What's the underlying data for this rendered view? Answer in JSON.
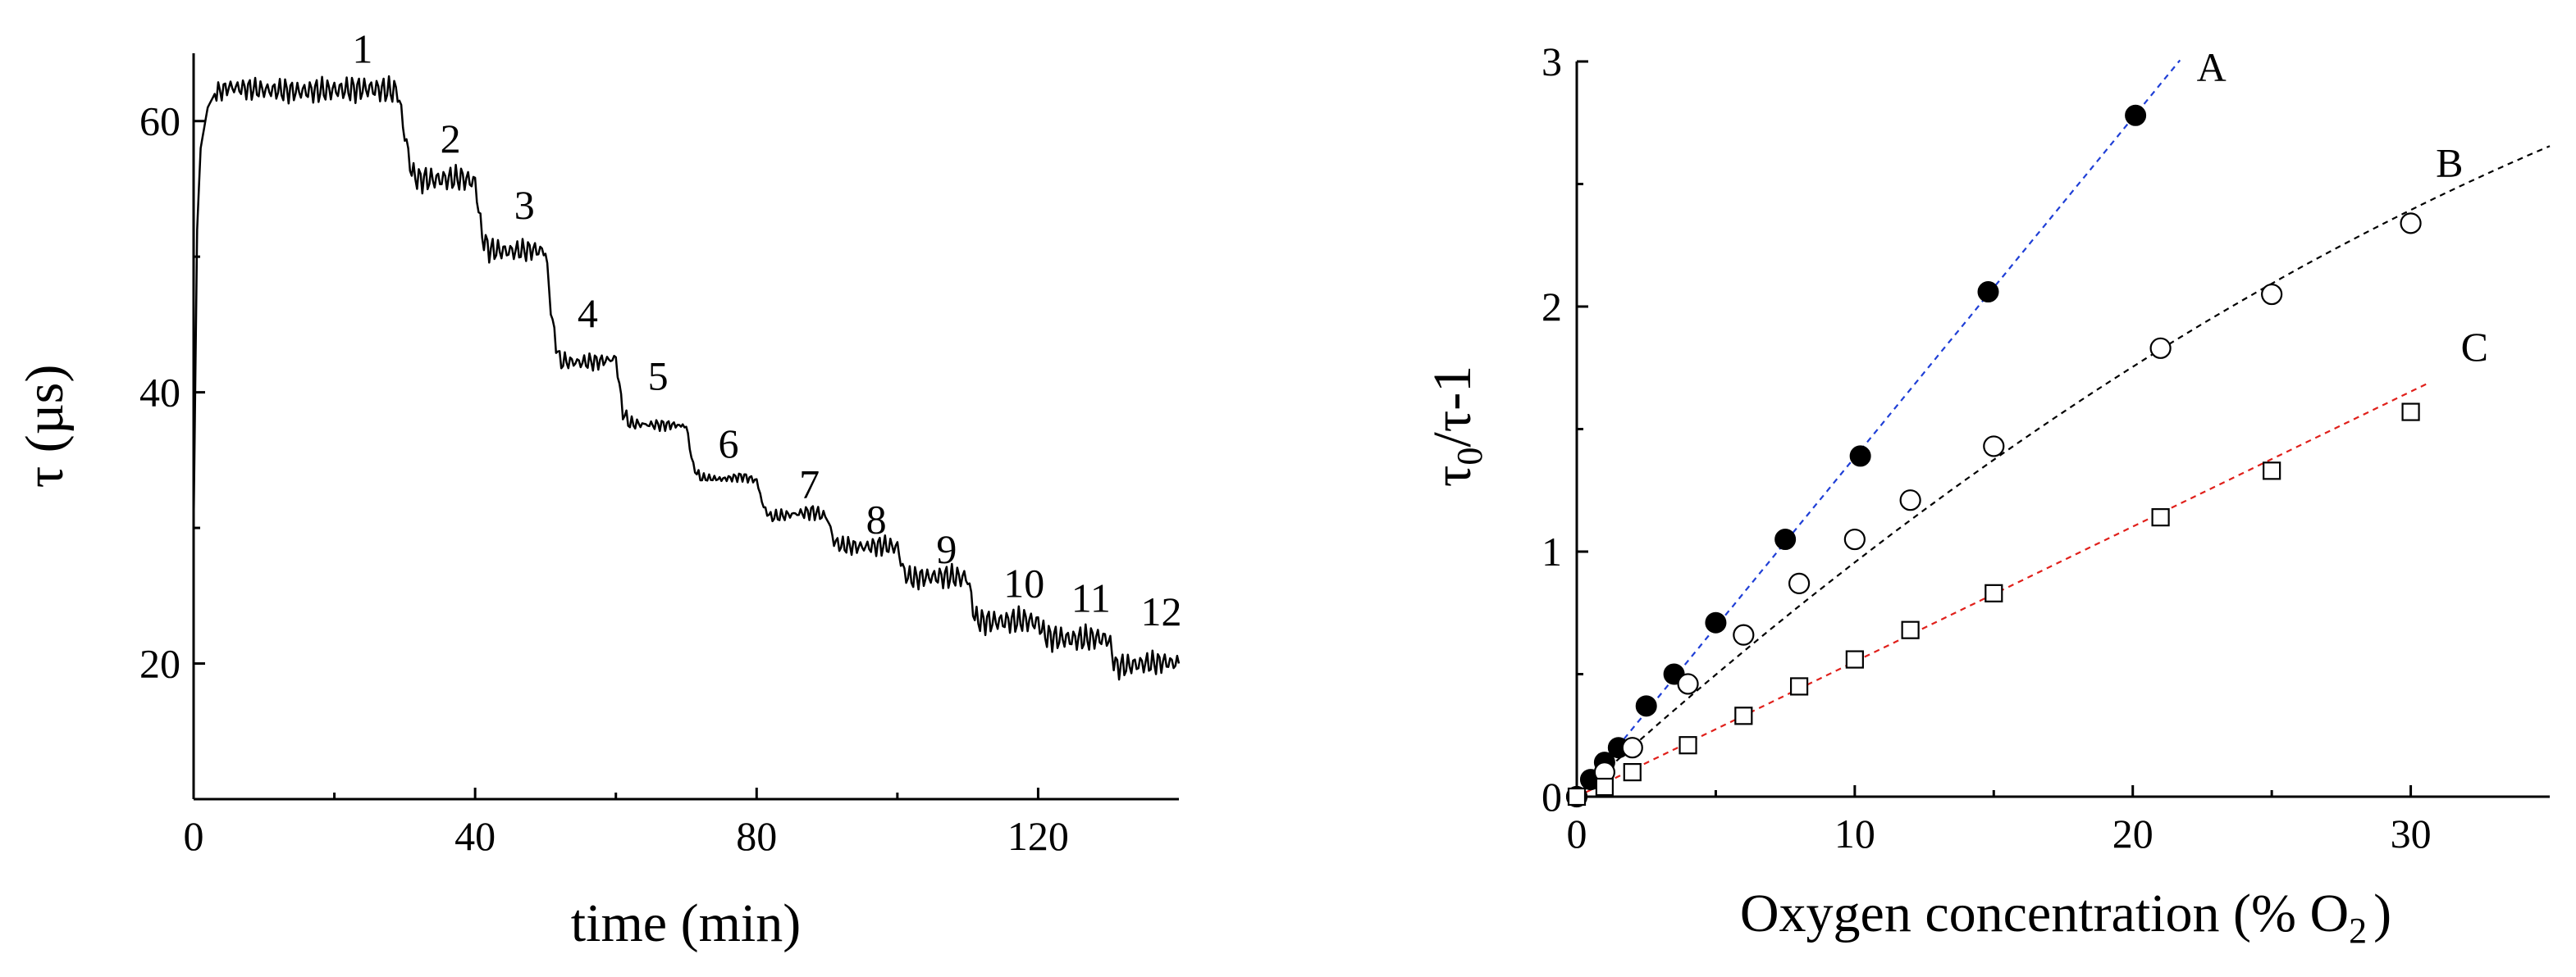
{
  "chart_data": [
    {
      "type": "line",
      "xlabel": "time (min)",
      "ylabel": "τ (µs)",
      "xlim": [
        0,
        140
      ],
      "ylim": [
        10,
        65
      ],
      "x_ticks": [
        0,
        40,
        80,
        120
      ],
      "y_ticks": [
        20,
        40,
        60
      ],
      "grid": false,
      "legend": "none",
      "color": "#000000",
      "step_annotations": [
        {
          "text": "1",
          "x": 24,
          "y": 64.3
        },
        {
          "text": "2",
          "x": 36.5,
          "y": 57.7
        },
        {
          "text": "3",
          "x": 47,
          "y": 52.8
        },
        {
          "text": "4",
          "x": 56,
          "y": 44.8
        },
        {
          "text": "5",
          "x": 66,
          "y": 40.2
        },
        {
          "text": "6",
          "x": 76,
          "y": 35.2
        },
        {
          "text": "7",
          "x": 87.5,
          "y": 32.2
        },
        {
          "text": "8",
          "x": 97,
          "y": 29.6
        },
        {
          "text": "9",
          "x": 107,
          "y": 27.4
        },
        {
          "text": "10",
          "x": 118,
          "y": 24.9
        },
        {
          "text": "11",
          "x": 127.5,
          "y": 23.8
        },
        {
          "text": "12",
          "x": 137.5,
          "y": 22.8
        }
      ],
      "series": [
        {
          "x": [
            0,
            0.5,
            1,
            2,
            3,
            5,
            10,
            15,
            20,
            25,
            29,
            30,
            31,
            32,
            35,
            38,
            40,
            41,
            42,
            45,
            48,
            50,
            51,
            52,
            55,
            58,
            60,
            61,
            62,
            65,
            68,
            70,
            71,
            72,
            75,
            78,
            80,
            81,
            82,
            85,
            88,
            90,
            91,
            92,
            95,
            98,
            100,
            101,
            102,
            105,
            108,
            110,
            111,
            112,
            115,
            118,
            120,
            121,
            122,
            125,
            128,
            130,
            131,
            132,
            135,
            138,
            140
          ],
          "y": [
            30,
            52,
            58,
            61,
            62,
            62.5,
            62.3,
            62.2,
            62.3,
            62.4,
            62.2,
            59,
            56.2,
            55.7,
            55.7,
            55.8,
            55.5,
            51.5,
            50.5,
            50.4,
            50.5,
            50.4,
            45,
            42.3,
            42.2,
            42.3,
            42.5,
            38.5,
            37.7,
            37.6,
            37.6,
            37.5,
            34.5,
            33.7,
            33.6,
            33.8,
            33.5,
            31.5,
            30.8,
            31,
            31.2,
            30.8,
            29,
            28.7,
            28.6,
            28.7,
            28.6,
            26.6,
            26.3,
            26.4,
            26.4,
            26.3,
            23.4,
            23.1,
            23.1,
            23.2,
            23,
            22.1,
            21.9,
            21.8,
            21.9,
            21.8,
            19.8,
            19.8,
            20,
            20.1,
            20
          ]
        }
      ]
    },
    {
      "type": "scatter",
      "xlabel": "Oxygen concentration (% O",
      "xlabel_subscript": "2",
      "xlabel_suffix": ")",
      "ylabel": "τ",
      "ylabel_subscript": "0",
      "ylabel_suffix": "/τ-1",
      "xlim": [
        0,
        35
      ],
      "ylim": [
        0,
        3
      ],
      "x_ticks": [
        0,
        10,
        20,
        30
      ],
      "y_ticks": [
        0,
        1,
        2,
        3
      ],
      "grid": false,
      "legend": "none",
      "series": [
        {
          "name": "A",
          "marker": "filled-circle",
          "color": "#000000",
          "fit_color": "#1f3fd6",
          "fit_range": [
            0,
            21.7
          ],
          "fit": {
            "kind": "linear",
            "slope": 0.1385
          },
          "x": [
            0,
            0.5,
            1,
            1.5,
            2.5,
            3.5,
            5,
            7.5,
            10.2,
            14.8,
            20.1
          ],
          "y": [
            0,
            0.07,
            0.14,
            0.2,
            0.37,
            0.5,
            0.71,
            1.05,
            1.39,
            2.06,
            2.78
          ]
        },
        {
          "name": "B",
          "marker": "open-circle",
          "color": "#000000",
          "fit_color": "#000000",
          "fit_range": [
            0,
            35
          ],
          "fit": {
            "kind": "quadratic",
            "a": 0.1035,
            "b": -0.00079
          },
          "x": [
            0,
            1,
            2,
            4,
            6,
            8,
            10,
            12,
            15,
            21,
            25,
            30
          ],
          "y": [
            0,
            0.1,
            0.2,
            0.46,
            0.66,
            0.87,
            1.05,
            1.21,
            1.43,
            1.83,
            2.05,
            2.34
          ]
        },
        {
          "name": "C",
          "marker": "open-square",
          "color": "#000000",
          "fit_color": "#e0201b",
          "fit_range": [
            0,
            30.6
          ],
          "fit": {
            "kind": "linear",
            "slope": 0.0551
          },
          "x": [
            0,
            1,
            2,
            4,
            6,
            8,
            10,
            12,
            15,
            21,
            25,
            30
          ],
          "y": [
            0,
            0.04,
            0.1,
            0.21,
            0.33,
            0.45,
            0.56,
            0.68,
            0.83,
            1.14,
            1.33,
            1.57
          ]
        }
      ],
      "curve_labels": [
        {
          "text": "A",
          "x": 22.3,
          "y": 2.92
        },
        {
          "text": "B",
          "x": 30.9,
          "y": 2.53
        },
        {
          "text": "C",
          "x": 31.8,
          "y": 1.78
        }
      ]
    }
  ]
}
